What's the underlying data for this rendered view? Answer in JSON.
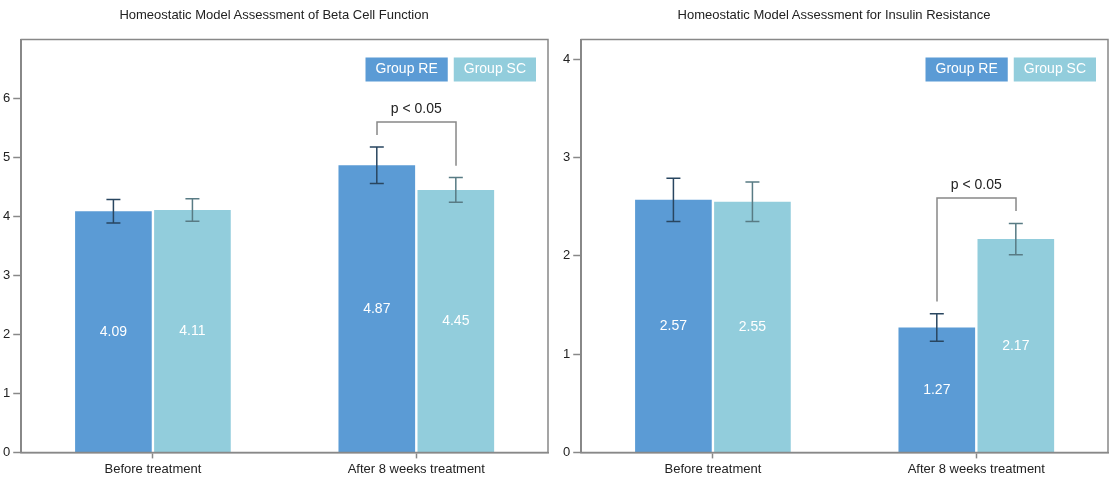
{
  "chart_data": [
    {
      "type": "bar",
      "title": "Homeostatic Model Assessment of Beta Cell Function",
      "categories": [
        "Before treatment",
        "After 8 weeks treatment"
      ],
      "series": [
        {
          "name": "Group RE",
          "color": "#5b9bd5",
          "values": [
            4.09,
            4.87
          ],
          "errors": [
            0.2,
            0.31
          ]
        },
        {
          "name": "Group SC",
          "color": "#92cddc",
          "values": [
            4.11,
            4.45
          ],
          "errors": [
            0.19,
            0.21
          ]
        }
      ],
      "ylim": [
        0,
        7
      ],
      "yticks": [
        0,
        1,
        2,
        3,
        4,
        5,
        6
      ],
      "grid": false,
      "legend": "top right",
      "data_labels": true,
      "annotations": [
        "p < 0.05"
      ]
    },
    {
      "type": "bar",
      "title": "Homeostatic Model Assessment for Insulin Resistance",
      "categories": [
        "Before treatment",
        "After 8 weeks treatment"
      ],
      "series": [
        {
          "name": "Group RE",
          "color": "#5b9bd5",
          "values": [
            2.57,
            1.27
          ],
          "errors": [
            0.22,
            0.14
          ]
        },
        {
          "name": "Group SC",
          "color": "#92cddc",
          "values": [
            2.55,
            2.17
          ],
          "errors": [
            0.2,
            0.16
          ]
        }
      ],
      "ylim": [
        0,
        4.2
      ],
      "yticks": [
        0,
        1,
        2,
        3,
        4
      ],
      "grid": false,
      "legend": "top right",
      "data_labels": true,
      "annotations": [
        "p < 0.05"
      ]
    }
  ]
}
